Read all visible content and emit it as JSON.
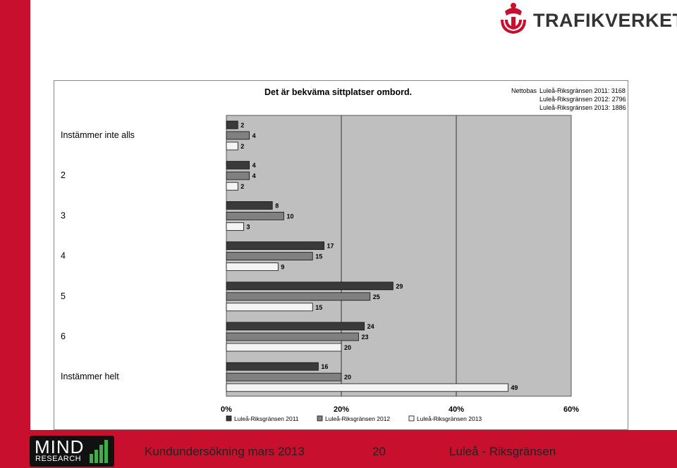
{
  "header": {
    "brand": "TRAFIKVERKET"
  },
  "footer": {
    "logo_main": "MIND",
    "logo_sub": "RESEARCH",
    "survey": "Kundundersökning mars 2013",
    "page_number": "20",
    "route": "Luleå - Riksgränsen"
  },
  "colors": {
    "accent_red": "#c8102e",
    "plot_bg": "#bfbfbf",
    "series_2011": "#3a3a3a",
    "series_2012": "#808080",
    "series_2013": "#f4f4f4"
  },
  "chart_data": {
    "type": "bar",
    "orientation": "horizontal",
    "title": "Det är bekväma sittplatser ombord.",
    "nettobas_label": "Nettobas",
    "nettobas": [
      "Luleå-Riksgränsen 2011: 3168",
      "Luleå-Riksgränsen 2012: 2796",
      "Luleå-Riksgränsen 2013: 1886"
    ],
    "categories": [
      "Instämmer inte alls",
      "2",
      "3",
      "4",
      "5",
      "6",
      "Instämmer helt"
    ],
    "series": [
      {
        "name": "Luleå-Riksgränsen 2011",
        "values": [
          2,
          4,
          8,
          17,
          29,
          24,
          16
        ]
      },
      {
        "name": "Luleå-Riksgränsen 2012",
        "values": [
          4,
          4,
          10,
          15,
          25,
          23,
          20
        ]
      },
      {
        "name": "Luleå-Riksgränsen 2013",
        "values": [
          2,
          2,
          3,
          9,
          15,
          20,
          49
        ]
      }
    ],
    "x_ticks": [
      "0%",
      "20%",
      "40%",
      "60%"
    ],
    "xlim": [
      0,
      60
    ],
    "grid": "vertical",
    "legend_position": "bottom"
  }
}
